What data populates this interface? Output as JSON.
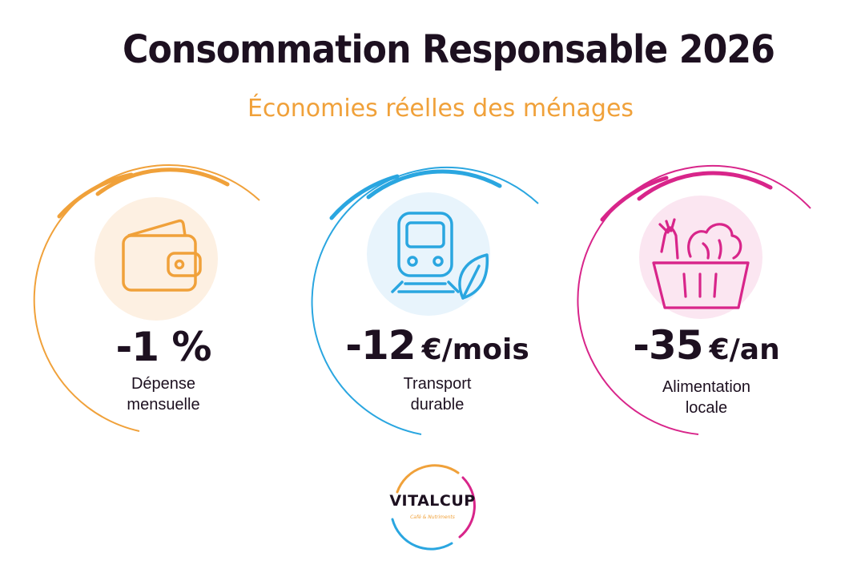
{
  "header": {
    "title": "Consommation Responsable 2026",
    "subtitle": "Économies réelles des ménages"
  },
  "colors": {
    "title": "#1d1020",
    "accent_orange": "#f0a13a",
    "accent_blue": "#2aa6e0",
    "accent_pink": "#d8258a"
  },
  "cards": [
    {
      "icon": "wallet-icon",
      "value": "-1 %",
      "unit": "",
      "label_line1": "Dépense",
      "label_line2": "mensuelle",
      "color": "#f0a13a",
      "bubble": "#fdf0e2"
    },
    {
      "icon": "train-leaf-icon",
      "value": "-12",
      "unit": "€/mois",
      "label_line1": "Transport",
      "label_line2": "durable",
      "color": "#2aa6e0",
      "bubble": "#e8f4fc"
    },
    {
      "icon": "vegetable-basket-icon",
      "value": "-35",
      "unit": "€/an",
      "label_line1": "Alimentation",
      "label_line2": "locale",
      "color": "#d8258a",
      "bubble": "#fbe6f1"
    }
  ],
  "logo": {
    "name": "VITALCUP",
    "tagline": "Café & Nutriments"
  }
}
